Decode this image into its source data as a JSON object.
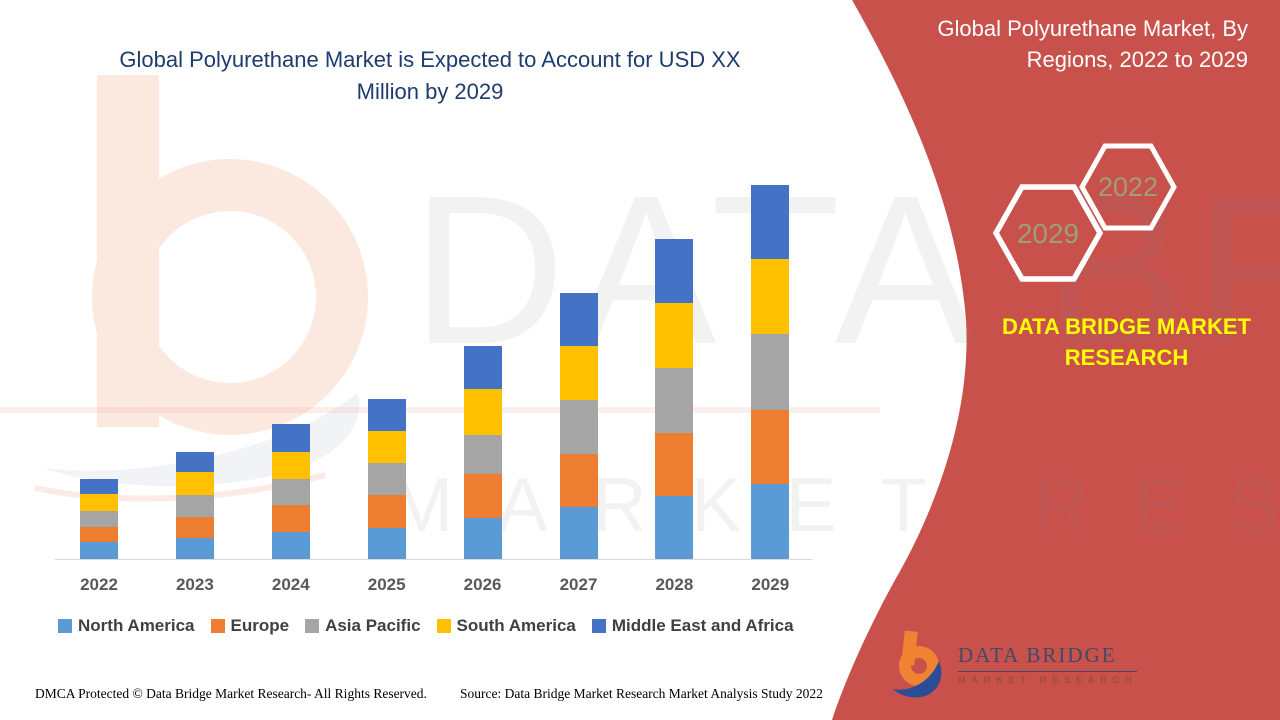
{
  "header": {
    "left_title_lines": [
      "Global Polyurethane Market is Expected to Account for USD XX",
      "Million by 2029"
    ],
    "right_title_lines": [
      "Global Polyurethane Market, By",
      "Regions, 2022 to 2029"
    ]
  },
  "sidebar": {
    "hexagons": [
      {
        "label": "2029"
      },
      {
        "label": "2022"
      }
    ],
    "hexagon_text_color": "#9CA077",
    "background_color": "#C8514C",
    "brand_line1": "DATA BRIDGE MARKET",
    "brand_line2": "RESEARCH",
    "brand_text_color": "#FFFF00"
  },
  "watermarks": {
    "row1": "DATA BRIDGE",
    "row2": "MARKET RESEARCH"
  },
  "chart_data": {
    "type": "bar",
    "stacked": true,
    "title": "Global Polyurethane Market is Expected to Account for USD XX Million by 2029",
    "xlabel": "",
    "ylabel": "",
    "legend_position": "bottom",
    "grid": false,
    "y_axis_shown": false,
    "value_note": "Actual values not displayed in chart (title shows 'USD XX Million'); series values are estimated relative magnitudes read from bar pixel heights.",
    "ylim": [
      0,
      400
    ],
    "categories": [
      "2022",
      "2023",
      "2024",
      "2025",
      "2026",
      "2027",
      "2028",
      "2029"
    ],
    "series": [
      {
        "name": "North America",
        "color": "#5B9BD5",
        "values": [
          17,
          21.5,
          27.5,
          31,
          41,
          52,
          63,
          75
        ]
      },
      {
        "name": "Europe",
        "color": "#ED7D31",
        "values": [
          15.5,
          21,
          26.5,
          33.5,
          44,
          53,
          63.5,
          74
        ]
      },
      {
        "name": "Asia Pacific",
        "color": "#A5A5A5",
        "values": [
          15.5,
          21.5,
          26,
          32,
          39.5,
          54.5,
          65,
          76
        ]
      },
      {
        "name": "South America",
        "color": "#FFC000",
        "values": [
          17.5,
          23,
          27.5,
          32,
          46,
          54,
          64.5,
          75.5
        ]
      },
      {
        "name": "Middle East and Africa",
        "color": "#4472C4",
        "values": [
          15,
          20,
          27.5,
          31.5,
          43,
          53,
          64,
          73.5
        ]
      }
    ],
    "totals_estimated": [
      80.5,
      107,
      135,
      160,
      213.5,
      266.5,
      320,
      374
    ]
  },
  "footer": {
    "dmca": "DMCA Protected © Data Bridge Market Research- All Rights Reserved.",
    "source": "Source: Data Bridge Market Research Market Analysis Study 2022"
  },
  "logo": {
    "name_text": "DATA BRIDGE",
    "sub_text": "MARKET RESEARCH"
  }
}
